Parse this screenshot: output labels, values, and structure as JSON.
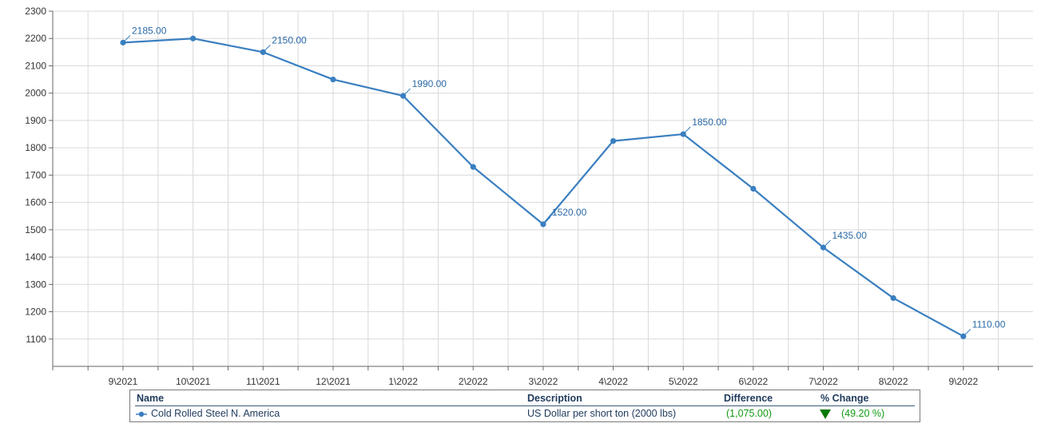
{
  "chart_data": {
    "type": "line",
    "categories": [
      "9\\2021",
      "10\\2021",
      "11\\2021",
      "12\\2021",
      "1\\2022",
      "2\\2022",
      "3\\2022",
      "4\\2022",
      "5\\2022",
      "6\\2022",
      "7\\2022",
      "8\\2022",
      "9\\2022"
    ],
    "series": [
      {
        "name": "Cold Rolled Steel  N. America",
        "values": [
          2185,
          2200,
          2150,
          2050,
          1990,
          1730,
          1520,
          1825,
          1850,
          1650,
          1435,
          1250,
          1110
        ],
        "color": "#3a7fc0"
      }
    ],
    "data_labels": [
      {
        "index": 0,
        "text": "2185.00"
      },
      {
        "index": 2,
        "text": "2150.00"
      },
      {
        "index": 4,
        "text": "1990.00"
      },
      {
        "index": 6,
        "text": "1520.00"
      },
      {
        "index": 8,
        "text": "1850.00"
      },
      {
        "index": 10,
        "text": "1435.00"
      },
      {
        "index": 12,
        "text": "1110.00"
      }
    ],
    "y_ticks": [
      1100,
      1200,
      1300,
      1400,
      1500,
      1600,
      1700,
      1800,
      1900,
      2000,
      2100,
      2200,
      2300
    ],
    "ylim": [
      1000,
      2300
    ],
    "grid": true,
    "title": "",
    "xlabel": "",
    "ylabel": ""
  },
  "legend": {
    "headers": {
      "name": "Name",
      "description": "Description",
      "difference": "Difference",
      "pct_change": "% Change"
    },
    "row": {
      "name": "Cold Rolled Steel  N. America",
      "description": "US Dollar per short ton (2000 lbs)",
      "difference": "(1,075.00)",
      "pct_change": "(49.20 %)",
      "trend_icon": "down-triangle-icon",
      "change_color": "#119911"
    }
  }
}
